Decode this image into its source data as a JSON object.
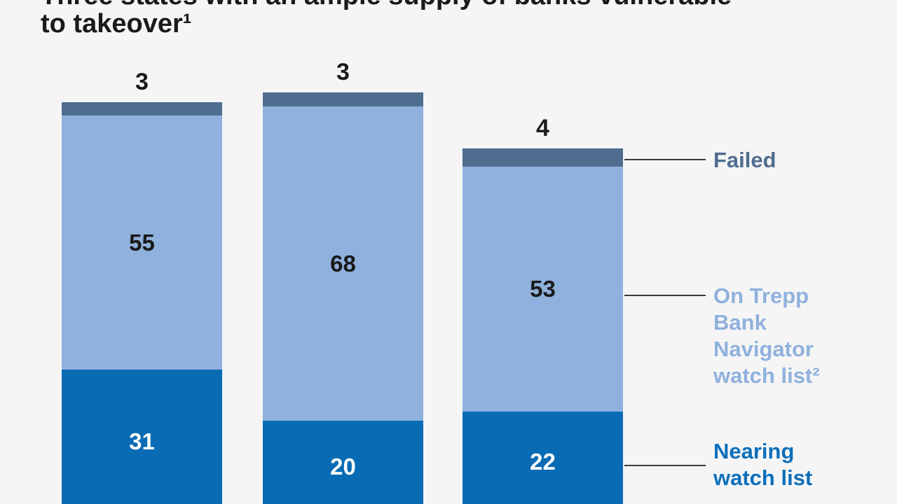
{
  "title": {
    "line1": "Three states with an ample supply of banks vulnerable",
    "line2": "to takeover¹"
  },
  "legend": {
    "position": "right",
    "failed": {
      "label": "Failed",
      "color": "#4f6d8f"
    },
    "watch": {
      "label": "On Trepp Bank Navigator watch list²",
      "color": "#90b1dd"
    },
    "nearing": {
      "label": "Nearing watch list",
      "color": "#0d6fba"
    }
  },
  "chart_data": {
    "type": "bar",
    "stacked": true,
    "grid": false,
    "legend_position": "right",
    "axis_labels_visible": false,
    "categories": [
      "",
      "",
      ""
    ],
    "series": [
      {
        "key": "failed",
        "name": "Failed",
        "color": "#4f6d8f",
        "values": [
          3,
          3,
          4
        ],
        "label_position": "above",
        "label_color": "#1a1a1a"
      },
      {
        "key": "watch",
        "name": "On Trepp Bank Navigator watch list²",
        "color": "#90b1dd",
        "values": [
          55,
          68,
          53
        ],
        "label_position": "inside",
        "label_color": "#1a1a1a"
      },
      {
        "key": "nearing",
        "name": "Nearing watch list",
        "color": "#0a6bb5",
        "values": [
          31,
          20,
          22
        ],
        "label_position": "inside",
        "label_color": "#ffffff"
      }
    ]
  }
}
